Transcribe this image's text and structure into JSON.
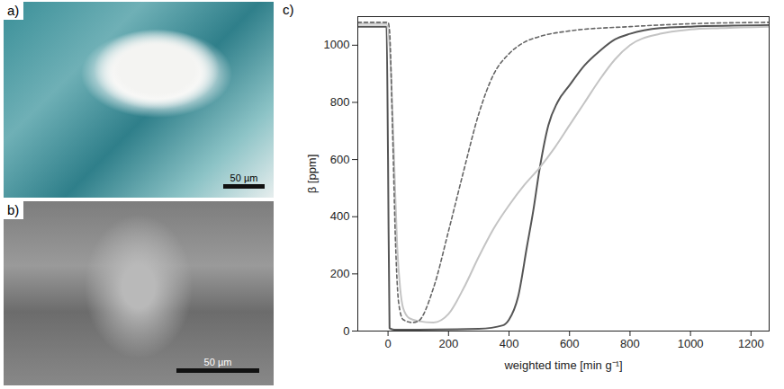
{
  "images": [
    {
      "label": "a)",
      "scale_bar": "50 µm"
    },
    {
      "label": "b)",
      "scale_bar": "50 µm"
    }
  ],
  "chart_data": {
    "type": "line",
    "title": "c)",
    "x_label": "weighted time [min g⁻¹]",
    "y_label": "β [ppm]",
    "xlim": [
      -100,
      1260
    ],
    "ylim": [
      0,
      1100
    ],
    "xticks": [
      0,
      200,
      400,
      600,
      800,
      1000,
      1200
    ],
    "yticks": [
      0,
      200,
      400,
      600,
      800,
      1000
    ],
    "grid": false,
    "series": [
      {
        "color": "#555555",
        "line_style": "solid",
        "x": [
          -100,
          -5,
          0,
          5,
          20,
          100,
          300,
          380,
          400,
          430,
          460,
          480,
          500,
          530,
          560,
          600,
          650,
          700,
          750,
          800,
          900,
          1000,
          1260
        ],
        "values": [
          1065,
          1065,
          600,
          10,
          5,
          5,
          8,
          20,
          40,
          120,
          300,
          420,
          560,
          720,
          800,
          860,
          930,
          980,
          1020,
          1040,
          1060,
          1065,
          1070
        ]
      },
      {
        "color": "#c4c4c4",
        "line_style": "solid",
        "x": [
          -100,
          -5,
          10,
          20,
          30,
          40,
          50,
          70,
          100,
          150,
          200,
          250,
          300,
          350,
          400,
          450,
          500,
          550,
          600,
          650,
          700,
          750,
          800,
          900,
          1000,
          1100,
          1260
        ],
        "values": [
          1075,
          1075,
          900,
          600,
          300,
          150,
          80,
          45,
          35,
          30,
          60,
          150,
          260,
          360,
          440,
          510,
          570,
          640,
          720,
          800,
          880,
          950,
          1000,
          1040,
          1055,
          1060,
          1065
        ]
      },
      {
        "color": "#666666",
        "line_style": "dashed",
        "x": [
          -100,
          0,
          5,
          15,
          25,
          35,
          50,
          80,
          100,
          150,
          200,
          250,
          300,
          350,
          400,
          450,
          500,
          600,
          800,
          1000,
          1260
        ],
        "values": [
          1080,
          1080,
          1050,
          700,
          300,
          100,
          40,
          30,
          35,
          150,
          350,
          560,
          760,
          900,
          970,
          1010,
          1030,
          1050,
          1065,
          1075,
          1080
        ]
      }
    ]
  }
}
